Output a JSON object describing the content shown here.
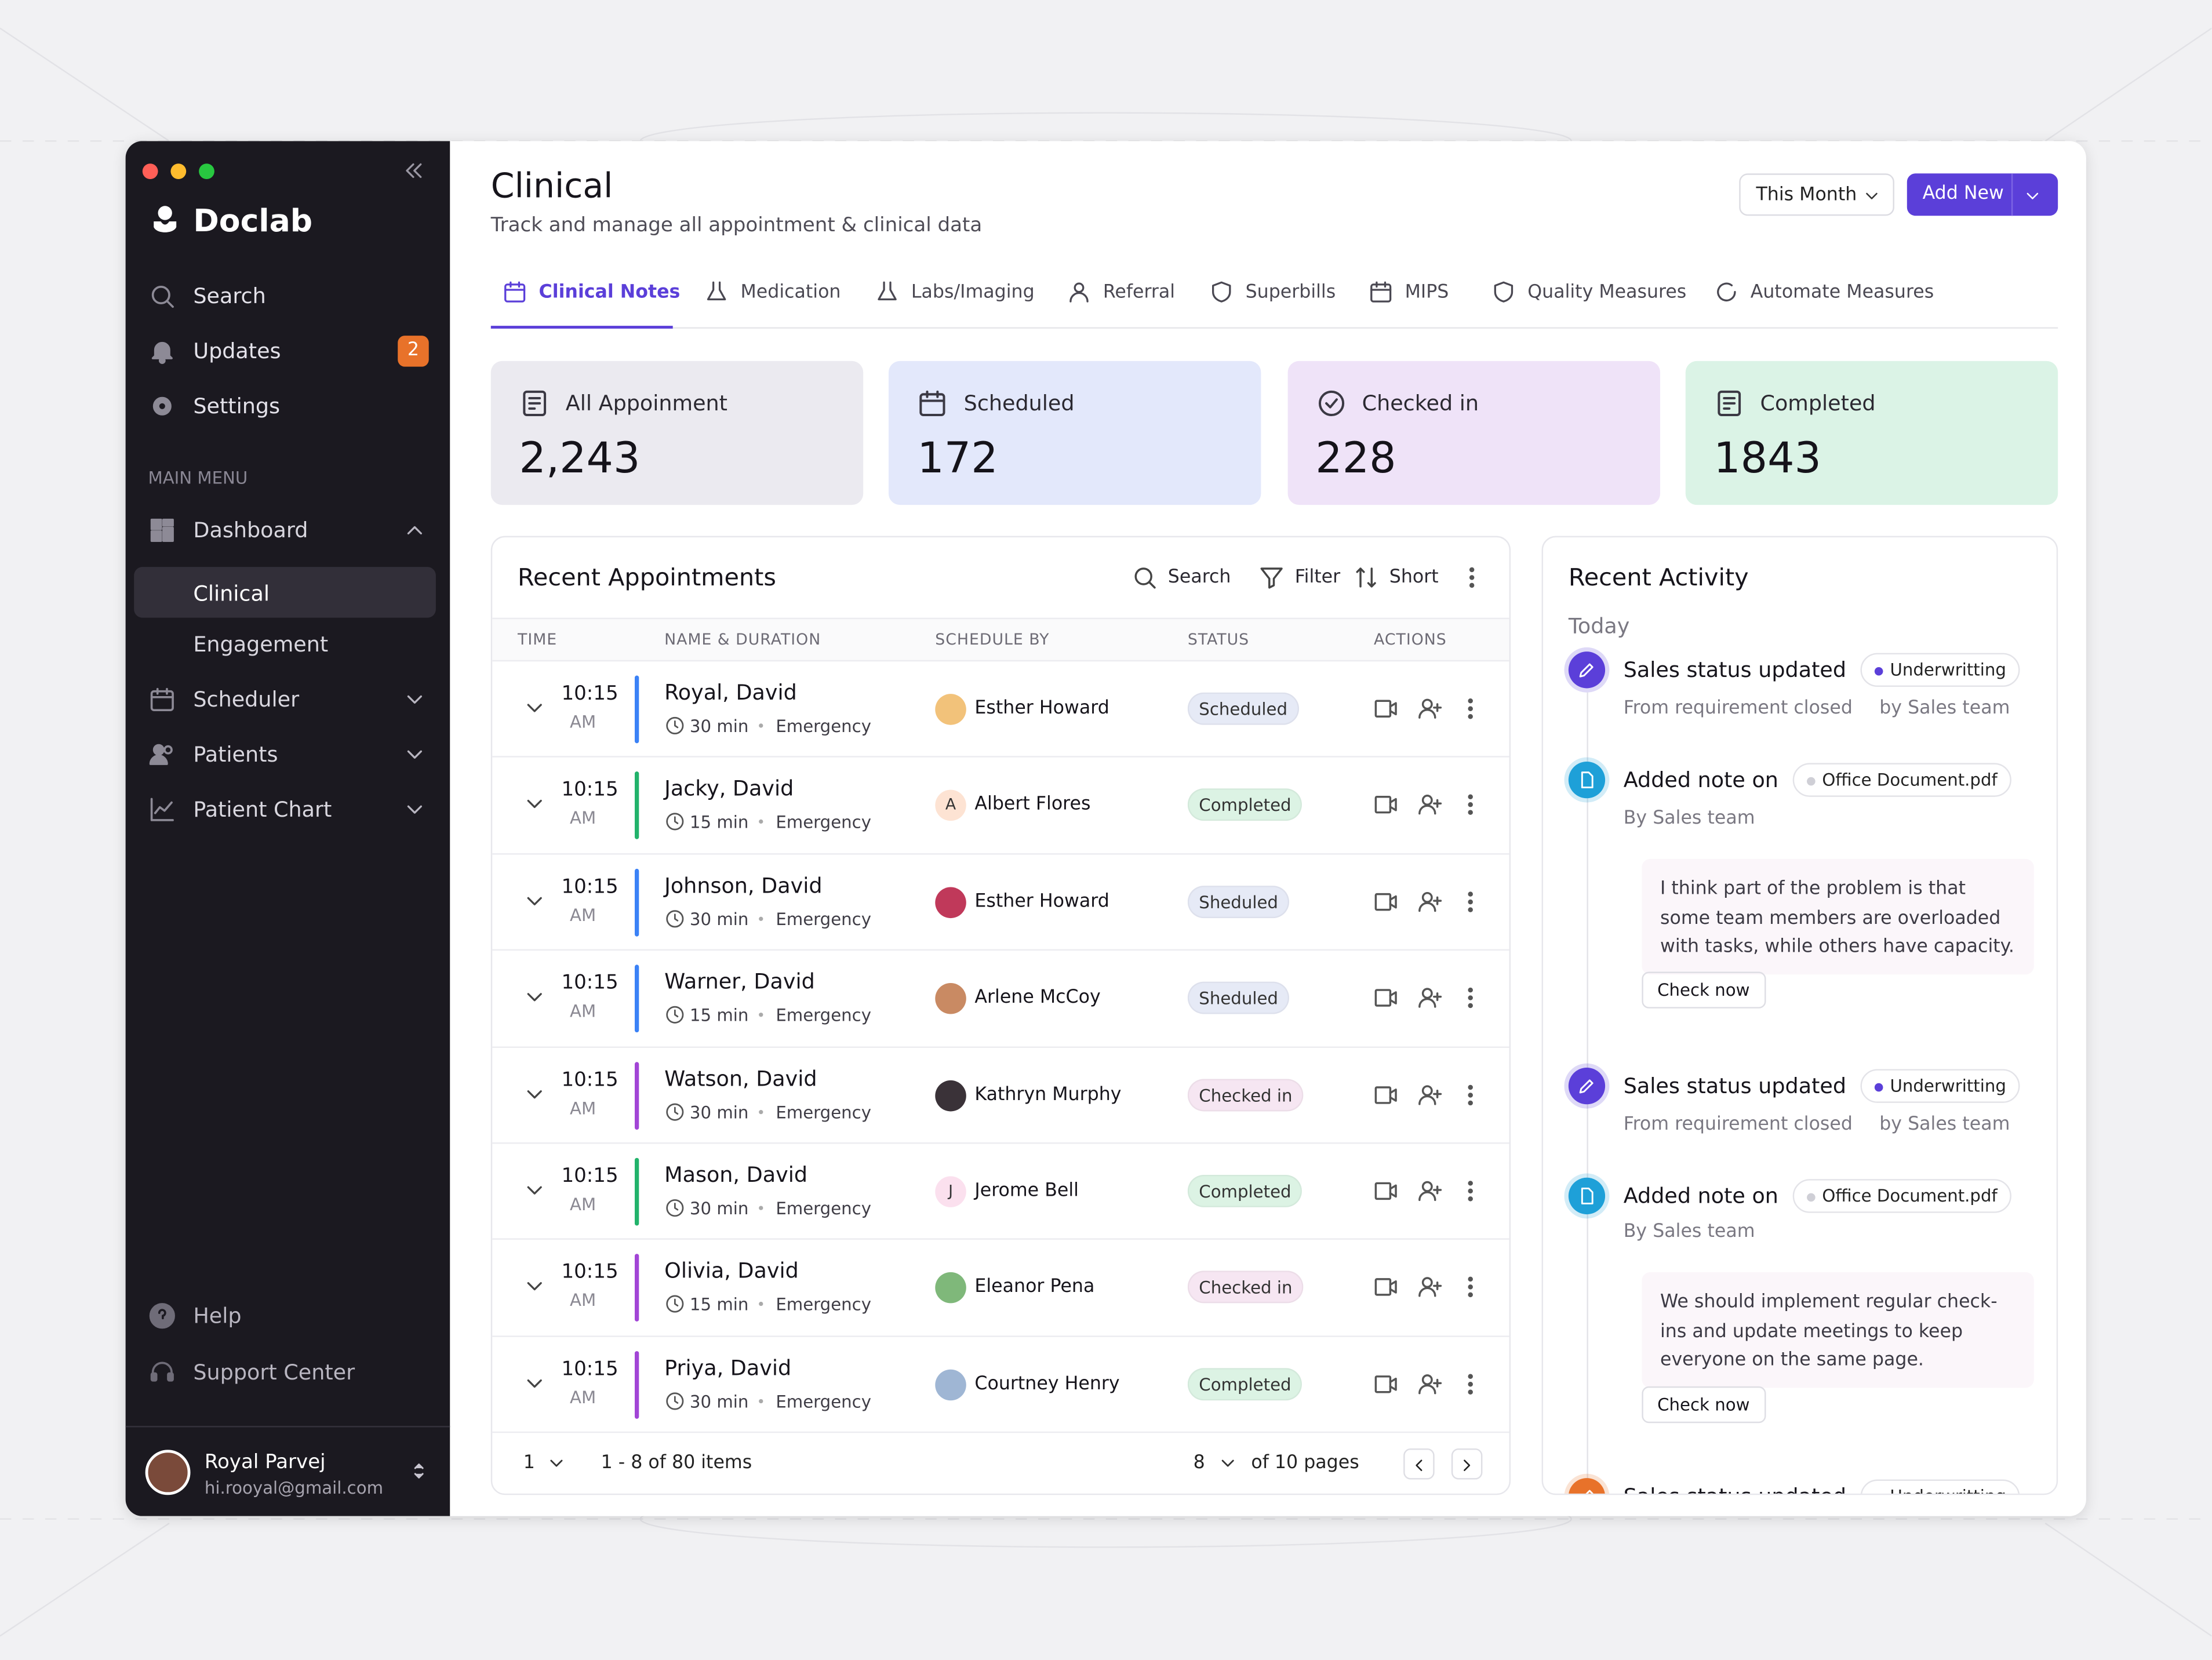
{
  "sidebar": {
    "brand": "Doclab",
    "top_items": [
      {
        "label": "Search"
      },
      {
        "label": "Updates",
        "badge": "2"
      },
      {
        "label": "Settings"
      }
    ],
    "section_label": "MAIN MENU",
    "menu": [
      "Dashboard",
      "Clinical",
      "Engagement",
      "Scheduler",
      "Patients",
      "Patient Chart"
    ],
    "bottom_items": [
      "Help",
      "Support Center"
    ],
    "user": {
      "name": "Royal Parvej",
      "email": "hi.rooyal@gmail.com"
    }
  },
  "header": {
    "title": "Clinical",
    "subtitle": "Track and manage all appointment & clinical data",
    "period": "This Month",
    "add_button": "Add New"
  },
  "tabs": [
    "Clinical Notes",
    "Medication",
    "Labs/Imaging",
    "Referral",
    "Superbills",
    "MIPS",
    "Quality Measures",
    "Automate Measures"
  ],
  "stats": [
    {
      "label": "All Appoinment",
      "value": "2,243",
      "color": "#ebeaf0"
    },
    {
      "label": "Scheduled",
      "value": "172",
      "color": "#e3e8fb"
    },
    {
      "label": "Checked in",
      "value": "228",
      "color": "#efe3f8"
    },
    {
      "label": "Completed",
      "value": "1843",
      "color": "#dbf3e6"
    }
  ],
  "appointments": {
    "title": "Recent Appointments",
    "tools": [
      "Search",
      "Filter",
      "Short"
    ],
    "columns": [
      "TIME",
      "NAME & DURATION",
      "SCHEDULE BY",
      "STATUS",
      "ACTIONS"
    ],
    "rows": [
      {
        "time": "10:15",
        "period": "AM",
        "name": "Royal, David",
        "duration": "30 min",
        "type": "Emergency",
        "scheduled_by": "Esther Howard",
        "avatar_color": "#f2c27a",
        "status": "Scheduled",
        "accent": "#3b82f6",
        "status_bg": "#e6eaf6"
      },
      {
        "time": "10:15",
        "period": "AM",
        "name": "Jacky, David",
        "duration": "15 min",
        "type": "Emergency",
        "scheduled_by": "Albert Flores",
        "initial": "A",
        "avatar_color": "#fde3d3",
        "status": "Completed",
        "accent": "#22b36b",
        "status_bg": "#dcf3e4"
      },
      {
        "time": "10:15",
        "period": "AM",
        "name": "Johnson, David",
        "duration": "30 min",
        "type": "Emergency",
        "scheduled_by": "Esther Howard",
        "avatar_color": "#c0395a",
        "status": "Sheduled",
        "accent": "#3b82f6",
        "status_bg": "#e6eaf6"
      },
      {
        "time": "10:15",
        "period": "AM",
        "name": "Warner, David",
        "duration": "15 min",
        "type": "Emergency",
        "scheduled_by": "Arlene McCoy",
        "avatar_color": "#c98a63",
        "status": "Sheduled",
        "accent": "#3b82f6",
        "status_bg": "#e6eaf6"
      },
      {
        "time": "10:15",
        "period": "AM",
        "name": "Watson, David",
        "duration": "30 min",
        "type": "Emergency",
        "scheduled_by": "Kathryn Murphy",
        "avatar_color": "#3a3238",
        "status": "Checked in",
        "accent": "#a245d6",
        "status_bg": "#f6e6f2"
      },
      {
        "time": "10:15",
        "period": "AM",
        "name": "Mason, David",
        "duration": "30 min",
        "type": "Emergency",
        "scheduled_by": "Jerome Bell",
        "initial": "J",
        "avatar_color": "#fbe0ee",
        "status": "Completed",
        "accent": "#22b36b",
        "status_bg": "#dcf3e4"
      },
      {
        "time": "10:15",
        "period": "AM",
        "name": "Olivia, David",
        "duration": "15 min",
        "type": "Emergency",
        "scheduled_by": "Eleanor Pena",
        "avatar_color": "#7fb87a",
        "status": "Checked in",
        "accent": "#a245d6",
        "status_bg": "#f6e6f2"
      },
      {
        "time": "10:15",
        "period": "AM",
        "name": "Priya, David",
        "duration": "30 min",
        "type": "Emergency",
        "scheduled_by": "Courtney Henry",
        "avatar_color": "#9fb6d4",
        "status": "Completed",
        "accent": "#a245d6",
        "status_bg": "#dcf3e4"
      }
    ],
    "footer": {
      "page": "1",
      "range": "1 - 8 of 80 items",
      "per_page": "8",
      "pages": "of 10 pages"
    }
  },
  "activity": {
    "title": "Recent Activity",
    "day": "Today",
    "items": [
      {
        "title": "Sales status updated",
        "tag": "Underwritting",
        "tag_dot": "#5b3fd9",
        "icon_color": "#5b3fd9",
        "meta": [
          "From requirement closed",
          "by Sales team"
        ]
      },
      {
        "title": "Added note on",
        "tag": "Office Document.pdf",
        "tag_dot": "#cfcfd6",
        "icon_color": "#1ea0d8",
        "meta": [
          "By Sales team"
        ],
        "note": "I think part of the problem is that some team members are overloaded with tasks, while others have capacity.",
        "button": "Check now"
      },
      {
        "title": "Sales status updated",
        "tag": "Underwritting",
        "tag_dot": "#5b3fd9",
        "icon_color": "#5b3fd9",
        "meta": [
          "From requirement closed",
          "by Sales team"
        ]
      },
      {
        "title": "Added note on",
        "tag": "Office Document.pdf",
        "tag_dot": "#cfcfd6",
        "icon_color": "#1ea0d8",
        "meta": [
          "By Sales team"
        ],
        "note": "We should implement regular check-ins and update meetings to keep everyone on the same page.",
        "button": "Check now"
      },
      {
        "title": "Sales status updated",
        "tag": "Underwritting",
        "tag_dot": "#e8722a",
        "icon_color": "#e8722a",
        "meta": []
      }
    ]
  }
}
